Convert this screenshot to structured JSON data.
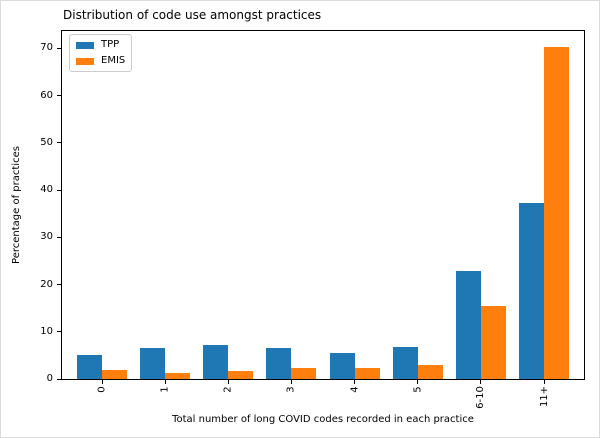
{
  "chart_data": {
    "type": "bar",
    "title": "Distribution of code use amongst practices",
    "xlabel": "Total number of long COVID codes recorded in each practice",
    "ylabel": "Percentage of practices",
    "categories": [
      "0",
      "1",
      "2",
      "3",
      "4",
      "5",
      "6-10",
      "11+"
    ],
    "series": [
      {
        "name": "TPP",
        "color": "#1f77b4",
        "values": [
          5.0,
          6.5,
          7.2,
          6.5,
          5.6,
          6.7,
          22.9,
          37.2
        ]
      },
      {
        "name": "EMIS",
        "color": "#ff7f0e",
        "values": [
          2.0,
          1.3,
          1.8,
          2.4,
          2.4,
          2.9,
          15.5,
          70.4
        ]
      }
    ],
    "ylim": [
      0,
      73.7
    ],
    "yticks": [
      0,
      10,
      20,
      30,
      40,
      50,
      60,
      70
    ],
    "xtick_rotation": 90,
    "grid": false,
    "legend_position": "upper-left",
    "spine_color": "#000000",
    "background_color": "#ffffff"
  }
}
